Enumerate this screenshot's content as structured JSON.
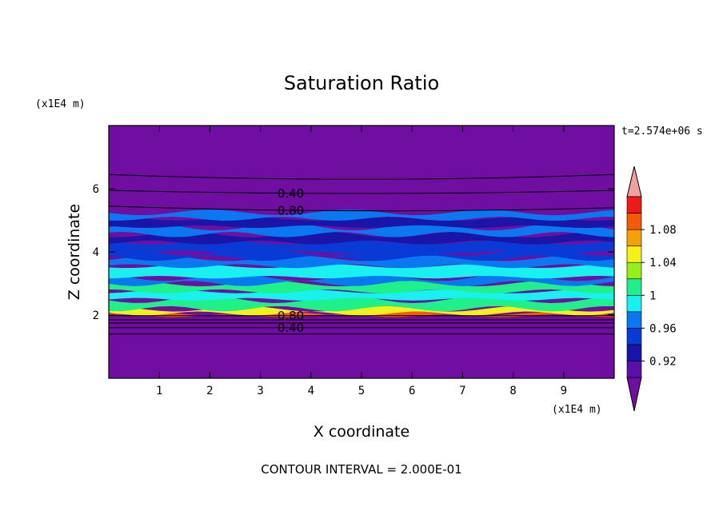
{
  "chart_data": {
    "type": "heatmap",
    "title": "Saturation Ratio",
    "xlabel": "X coordinate",
    "ylabel": "Z coordinate",
    "x_unit": "(x1E4 m)",
    "y_unit": "(x1E4 m)",
    "time_label": "t=2.574e+06 s",
    "footer": "CONTOUR INTERVAL = 2.000E-01",
    "xlim": [
      0,
      10
    ],
    "ylim": [
      0,
      8
    ],
    "x_ticks": [
      1,
      2,
      3,
      4,
      5,
      6,
      7,
      8,
      9
    ],
    "y_ticks": [
      2,
      4,
      6
    ],
    "colorbar": {
      "levels": [
        0.9,
        0.92,
        0.94,
        0.96,
        0.98,
        1.0,
        1.02,
        1.04,
        1.06,
        1.08,
        1.1
      ],
      "colors": [
        "#5a0fa8",
        "#1a14a8",
        "#0a3ad6",
        "#0a78f0",
        "#19f0f0",
        "#1ff08a",
        "#96ef19",
        "#f5f019",
        "#f5a00a",
        "#f55a0a",
        "#f01919"
      ],
      "below_color": "#6f0ea0",
      "above_color": "#f0a0a0",
      "labels": [
        "0.92",
        "0.96",
        "1",
        "1.04",
        "1.08"
      ]
    },
    "contour_labels": [
      "0.40",
      "0.80",
      "0.80",
      "0.40"
    ],
    "contour_lines": [
      {
        "y": [
          6.45,
          6.3,
          6.45
        ]
      },
      {
        "y": [
          5.95,
          5.85,
          5.95
        ],
        "label": "0.40"
      },
      {
        "y": [
          5.45,
          5.3,
          5.4
        ],
        "label": "0.80"
      },
      {
        "y": [
          1.98,
          1.98,
          1.98
        ],
        "label": "0.80"
      },
      {
        "y": [
          1.85,
          1.85,
          1.85
        ]
      },
      {
        "y": [
          1.75,
          1.75,
          1.75
        ]
      },
      {
        "y": [
          1.6,
          1.6,
          1.6
        ],
        "label": "0.40"
      },
      {
        "y": [
          1.4,
          1.4,
          1.4
        ]
      }
    ],
    "bands": [
      {
        "z": [
          1.98,
          2.05
        ],
        "value": 1.08
      },
      {
        "z": [
          2.05,
          2.2
        ],
        "value": 1.05
      },
      {
        "z": [
          2.2,
          2.5
        ],
        "value": 1.01
      },
      {
        "z": [
          2.5,
          2.75
        ],
        "value": 0.99
      },
      {
        "z": [
          2.75,
          3.0
        ],
        "value": 1.0
      },
      {
        "z": [
          3.0,
          3.2
        ],
        "value": 0.97
      },
      {
        "z": [
          3.2,
          3.55
        ],
        "value": 0.98
      },
      {
        "z": [
          3.55,
          3.8
        ],
        "value": 0.97
      },
      {
        "z": [
          3.8,
          4.0
        ],
        "value": 0.95
      },
      {
        "z": [
          4.0,
          4.3
        ],
        "value": 0.94
      },
      {
        "z": [
          4.3,
          4.55
        ],
        "value": 0.92
      },
      {
        "z": [
          4.55,
          4.8
        ],
        "value": 0.96
      },
      {
        "z": [
          4.8,
          5.05
        ],
        "value": 0.93
      },
      {
        "z": [
          5.05,
          5.25
        ],
        "value": 0.96
      }
    ]
  }
}
